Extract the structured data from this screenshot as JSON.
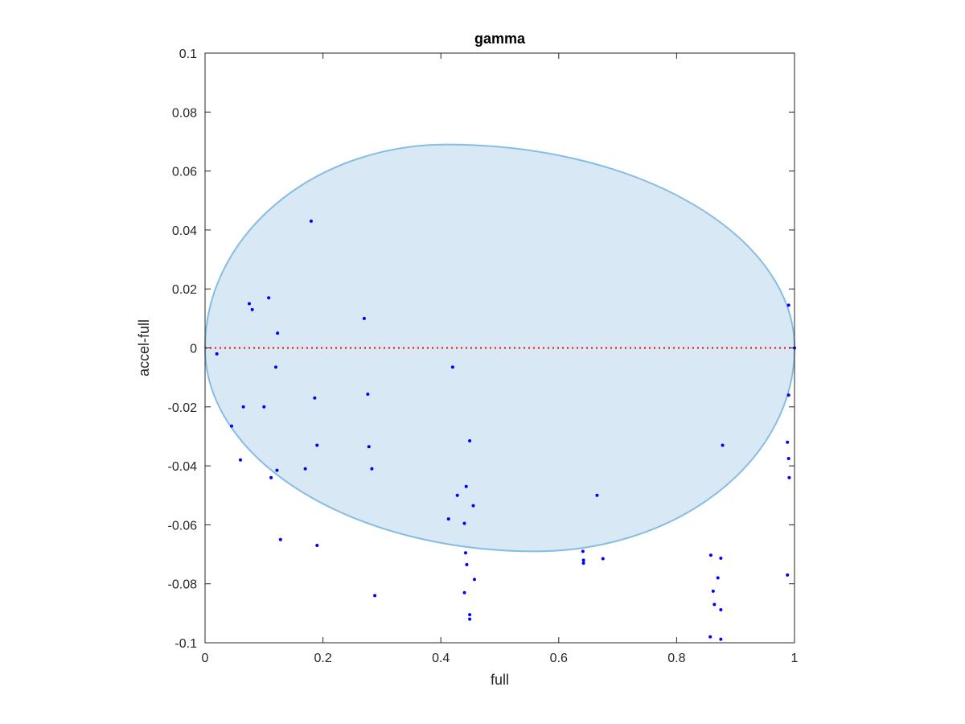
{
  "chart_data": {
    "type": "scatter",
    "title": "gamma",
    "xlabel": "full",
    "ylabel": "accel-full",
    "xlim": [
      0,
      1
    ],
    "ylim": [
      -0.1,
      0.1
    ],
    "xticks": [
      0,
      0.2,
      0.4,
      0.6,
      0.8,
      1
    ],
    "xtick_labels": [
      "0",
      "0.2",
      "0.4",
      "0.6",
      "0.8",
      "1"
    ],
    "yticks": [
      0.1,
      0.08,
      0.06,
      0.04,
      0.02,
      0,
      -0.02,
      -0.04,
      -0.06,
      -0.08,
      -0.1
    ],
    "ytick_labels": [
      "0.1",
      "0.08",
      "0.06",
      "0.04",
      "0.02",
      "0",
      "-0.02",
      "-0.04",
      "-0.06",
      "-0.08",
      "-0.1"
    ],
    "grid": false,
    "reference_line": {
      "y": 0,
      "style": "dotted",
      "color": "#ff0000"
    },
    "ellipse": {
      "x_min": 0,
      "x_max": 1,
      "top_y": 0.069,
      "top_x": 0.41,
      "bottom_y": -0.069,
      "bottom_x": 0.56,
      "fill": "#d9e8f5",
      "stroke": "#86bde0"
    },
    "marker_color": "#0000ff",
    "points": [
      {
        "x": 0.18,
        "y": 0.043
      },
      {
        "x": 0.075,
        "y": 0.015
      },
      {
        "x": 0.08,
        "y": 0.013
      },
      {
        "x": 0.108,
        "y": 0.017
      },
      {
        "x": 0.123,
        "y": 0.005
      },
      {
        "x": 0.27,
        "y": 0.01
      },
      {
        "x": 0.02,
        "y": -0.002
      },
      {
        "x": 0.12,
        "y": -0.0065
      },
      {
        "x": 0.065,
        "y": -0.02
      },
      {
        "x": 0.1,
        "y": -0.02
      },
      {
        "x": 0.186,
        "y": -0.017
      },
      {
        "x": 0.276,
        "y": -0.0157
      },
      {
        "x": 0.42,
        "y": -0.0065
      },
      {
        "x": 0.045,
        "y": -0.0265
      },
      {
        "x": 0.06,
        "y": -0.038
      },
      {
        "x": 0.19,
        "y": -0.033
      },
      {
        "x": 0.278,
        "y": -0.0335
      },
      {
        "x": 0.17,
        "y": -0.041
      },
      {
        "x": 0.283,
        "y": -0.041
      },
      {
        "x": 0.122,
        "y": -0.0415
      },
      {
        "x": 0.112,
        "y": -0.044
      },
      {
        "x": 0.449,
        "y": -0.0315
      },
      {
        "x": 0.428,
        "y": -0.05
      },
      {
        "x": 0.443,
        "y": -0.047
      },
      {
        "x": 0.455,
        "y": -0.0535
      },
      {
        "x": 0.413,
        "y": -0.058
      },
      {
        "x": 0.44,
        "y": -0.0595
      },
      {
        "x": 0.665,
        "y": -0.05
      },
      {
        "x": 0.128,
        "y": -0.065
      },
      {
        "x": 0.19,
        "y": -0.067
      },
      {
        "x": 0.442,
        "y": -0.0695
      },
      {
        "x": 0.444,
        "y": -0.0735
      },
      {
        "x": 0.457,
        "y": -0.0785
      },
      {
        "x": 0.44,
        "y": -0.083
      },
      {
        "x": 0.288,
        "y": -0.084
      },
      {
        "x": 0.449,
        "y": -0.0905
      },
      {
        "x": 0.449,
        "y": -0.092
      },
      {
        "x": 0.641,
        "y": -0.069
      },
      {
        "x": 0.642,
        "y": -0.072
      },
      {
        "x": 0.642,
        "y": -0.073
      },
      {
        "x": 0.675,
        "y": -0.0715
      },
      {
        "x": 0.878,
        "y": -0.033
      },
      {
        "x": 0.858,
        "y": -0.0703
      },
      {
        "x": 0.875,
        "y": -0.0713
      },
      {
        "x": 0.87,
        "y": -0.078
      },
      {
        "x": 0.862,
        "y": -0.0825
      },
      {
        "x": 0.864,
        "y": -0.087
      },
      {
        "x": 0.875,
        "y": -0.0888
      },
      {
        "x": 0.857,
        "y": -0.098
      },
      {
        "x": 0.875,
        "y": -0.0988
      },
      {
        "x": 0.99,
        "y": 0.0145
      },
      {
        "x": 1.0,
        "y": 0.0
      },
      {
        "x": 0.99,
        "y": -0.016
      },
      {
        "x": 0.988,
        "y": -0.032
      },
      {
        "x": 0.99,
        "y": -0.0375
      },
      {
        "x": 0.991,
        "y": -0.044
      },
      {
        "x": 0.988,
        "y": -0.077
      }
    ]
  }
}
